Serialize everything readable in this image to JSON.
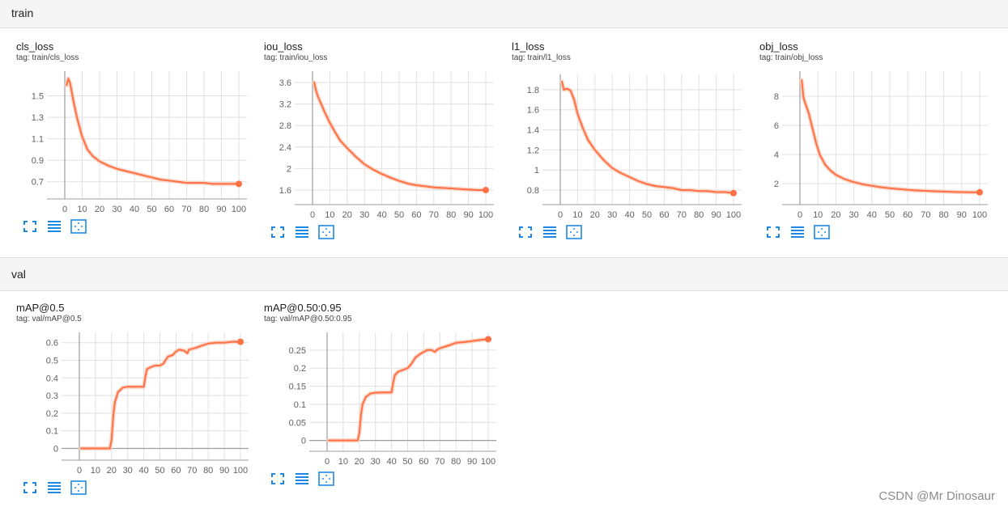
{
  "sections": {
    "train": {
      "label": "train"
    },
    "val": {
      "label": "val"
    }
  },
  "watermark": "CSDN @Mr Dinosaur",
  "colors": {
    "line": "#ff7043",
    "smooth_bg": "#f8d3c6",
    "axis": "#9e9e9e",
    "grid": "#e0e0e0",
    "icon": "#1e88e5"
  },
  "toolbar_icons": [
    "fullscreen-icon",
    "toggle-log-scale-icon",
    "fit-domain-icon"
  ],
  "cards": [
    {
      "id": "cls",
      "title": "cls_loss",
      "tag": "tag: train/cls_loss"
    },
    {
      "id": "iou",
      "title": "iou_loss",
      "tag": "tag: train/iou_loss"
    },
    {
      "id": "l1",
      "title": "l1_loss",
      "tag": "tag: train/l1_loss"
    },
    {
      "id": "obj",
      "title": "obj_loss",
      "tag": "tag: train/obj_loss"
    },
    {
      "id": "map50",
      "title": "mAP@0.5",
      "tag": "tag: val/mAP@0.5"
    },
    {
      "id": "map5095",
      "title": "mAP@0.50:0.95",
      "tag": "tag: val/mAP@0.50:0.95"
    }
  ],
  "chart_data": [
    {
      "type": "line",
      "title": "cls_loss",
      "xlim": [
        0,
        100
      ],
      "ylim": [
        0.6,
        1.7
      ],
      "xticks": [
        0,
        10,
        20,
        30,
        40,
        50,
        60,
        70,
        80,
        90,
        100
      ],
      "xtick_labels": [
        "0",
        "10",
        "20",
        "30",
        "40",
        "50",
        "60",
        "70",
        "80",
        "90",
        "100"
      ],
      "yticks": [
        0.7,
        0.9,
        1.1,
        1.3,
        1.5
      ],
      "ytick_labels": [
        "0.7",
        "0.9",
        "1.1",
        "1.3",
        "1.5"
      ],
      "x": [
        1,
        2,
        3,
        5,
        7,
        10,
        13,
        16,
        20,
        25,
        30,
        35,
        40,
        45,
        50,
        55,
        60,
        65,
        70,
        75,
        80,
        85,
        90,
        95,
        100
      ],
      "y": [
        1.6,
        1.66,
        1.62,
        1.45,
        1.3,
        1.12,
        1.0,
        0.94,
        0.89,
        0.85,
        0.82,
        0.8,
        0.78,
        0.76,
        0.74,
        0.72,
        0.71,
        0.7,
        0.69,
        0.69,
        0.69,
        0.68,
        0.68,
        0.68,
        0.68
      ]
    },
    {
      "type": "line",
      "title": "iou_loss",
      "xlim": [
        0,
        100
      ],
      "ylim": [
        1.45,
        3.75
      ],
      "xticks": [
        0,
        10,
        20,
        30,
        40,
        50,
        60,
        70,
        80,
        90,
        100
      ],
      "xtick_labels": [
        "0",
        "10",
        "20",
        "30",
        "40",
        "50",
        "60",
        "70",
        "80",
        "90",
        "100"
      ],
      "yticks": [
        1.6,
        2,
        2.4,
        2.8,
        3.2,
        3.6
      ],
      "ytick_labels": [
        "1.6",
        "2",
        "2.4",
        "2.8",
        "3.2",
        "3.6"
      ],
      "x": [
        1,
        2,
        3,
        5,
        7,
        10,
        13,
        16,
        20,
        25,
        30,
        35,
        40,
        45,
        50,
        55,
        60,
        65,
        70,
        75,
        80,
        85,
        90,
        95,
        100
      ],
      "y": [
        3.6,
        3.45,
        3.35,
        3.2,
        3.05,
        2.85,
        2.68,
        2.52,
        2.38,
        2.22,
        2.08,
        1.98,
        1.9,
        1.83,
        1.77,
        1.72,
        1.69,
        1.67,
        1.65,
        1.64,
        1.63,
        1.62,
        1.61,
        1.6,
        1.6
      ]
    },
    {
      "type": "line",
      "title": "l1_loss",
      "xlim": [
        0,
        100
      ],
      "ylim": [
        0.72,
        1.92
      ],
      "xticks": [
        0,
        10,
        20,
        30,
        40,
        50,
        60,
        70,
        80,
        90,
        100
      ],
      "xtick_labels": [
        "0",
        "10",
        "20",
        "30",
        "40",
        "50",
        "60",
        "70",
        "80",
        "90",
        "100"
      ],
      "yticks": [
        0.8,
        1,
        1.2,
        1.4,
        1.6,
        1.8
      ],
      "ytick_labels": [
        "0.8",
        "1",
        "1.2",
        "1.4",
        "1.6",
        "1.8"
      ],
      "x": [
        1,
        2,
        4,
        6,
        8,
        10,
        13,
        16,
        20,
        25,
        30,
        35,
        40,
        45,
        50,
        55,
        60,
        65,
        70,
        75,
        80,
        85,
        90,
        95,
        100
      ],
      "y": [
        1.88,
        1.8,
        1.81,
        1.79,
        1.7,
        1.56,
        1.42,
        1.3,
        1.2,
        1.1,
        1.02,
        0.97,
        0.93,
        0.89,
        0.86,
        0.84,
        0.83,
        0.82,
        0.8,
        0.8,
        0.79,
        0.79,
        0.78,
        0.78,
        0.77
      ]
    },
    {
      "type": "line",
      "title": "obj_loss",
      "xlim": [
        0,
        100
      ],
      "ylim": [
        1,
        9.5
      ],
      "xticks": [
        0,
        10,
        20,
        30,
        40,
        50,
        60,
        70,
        80,
        90,
        100
      ],
      "xtick_labels": [
        "0",
        "10",
        "20",
        "30",
        "40",
        "50",
        "60",
        "70",
        "80",
        "90",
        "100"
      ],
      "yticks": [
        2,
        4,
        6,
        8
      ],
      "ytick_labels": [
        "2",
        "4",
        "6",
        "8"
      ],
      "x": [
        1,
        2,
        3,
        5,
        7,
        9,
        11,
        14,
        17,
        20,
        25,
        30,
        35,
        40,
        45,
        50,
        55,
        60,
        65,
        70,
        75,
        80,
        85,
        90,
        95,
        100
      ],
      "y": [
        9.1,
        7.9,
        7.5,
        6.8,
        5.8,
        4.8,
        4.0,
        3.3,
        2.9,
        2.6,
        2.3,
        2.1,
        1.95,
        1.85,
        1.75,
        1.68,
        1.62,
        1.57,
        1.53,
        1.5,
        1.47,
        1.45,
        1.43,
        1.41,
        1.4,
        1.4
      ]
    },
    {
      "type": "line",
      "title": "mAP@0.5",
      "xlim": [
        0,
        100
      ],
      "ylim": [
        -0.03,
        0.64
      ],
      "xticks": [
        0,
        10,
        20,
        30,
        40,
        50,
        60,
        70,
        80,
        90,
        100
      ],
      "xtick_labels": [
        "0",
        "10",
        "20",
        "30",
        "40",
        "50",
        "60",
        "70",
        "80",
        "90",
        "100"
      ],
      "yticks": [
        0,
        0.1,
        0.2,
        0.3,
        0.4,
        0.5,
        0.6
      ],
      "ytick_labels": [
        "0",
        "0.1",
        "0.2",
        "0.3",
        "0.4",
        "0.5",
        "0.6"
      ],
      "x": [
        1,
        10,
        19,
        20,
        21,
        22,
        24,
        27,
        30,
        35,
        39,
        40,
        41,
        42,
        44,
        47,
        50,
        52,
        55,
        58,
        60,
        62,
        65,
        67,
        68,
        70,
        72,
        75,
        80,
        85,
        90,
        95,
        100
      ],
      "y": [
        0,
        0,
        0,
        0.05,
        0.18,
        0.26,
        0.32,
        0.345,
        0.35,
        0.35,
        0.35,
        0.35,
        0.41,
        0.45,
        0.46,
        0.47,
        0.47,
        0.48,
        0.52,
        0.53,
        0.55,
        0.56,
        0.555,
        0.54,
        0.56,
        0.565,
        0.57,
        0.58,
        0.595,
        0.6,
        0.6,
        0.605,
        0.605
      ]
    },
    {
      "type": "line",
      "title": "mAP@0.50:0.95",
      "xlim": [
        0,
        100
      ],
      "ylim": [
        -0.012,
        0.29
      ],
      "xticks": [
        0,
        10,
        20,
        30,
        40,
        50,
        60,
        70,
        80,
        90,
        100
      ],
      "xtick_labels": [
        "0",
        "10",
        "20",
        "30",
        "40",
        "50",
        "60",
        "70",
        "80",
        "90",
        "100"
      ],
      "yticks": [
        0,
        0.05,
        0.1,
        0.15,
        0.2,
        0.25
      ],
      "ytick_labels": [
        "0",
        "0.05",
        "0.1",
        "0.15",
        "0.2",
        "0.25"
      ],
      "x": [
        1,
        10,
        19,
        20,
        21,
        22,
        24,
        27,
        30,
        35,
        39,
        40,
        41,
        42,
        44,
        47,
        50,
        52,
        55,
        58,
        60,
        62,
        65,
        67,
        68,
        70,
        75,
        80,
        85,
        90,
        95,
        100
      ],
      "y": [
        0,
        0,
        0,
        0.02,
        0.07,
        0.1,
        0.12,
        0.13,
        0.132,
        0.133,
        0.133,
        0.133,
        0.16,
        0.18,
        0.19,
        0.195,
        0.2,
        0.21,
        0.23,
        0.24,
        0.245,
        0.25,
        0.25,
        0.245,
        0.25,
        0.255,
        0.262,
        0.27,
        0.272,
        0.275,
        0.278,
        0.28
      ]
    }
  ]
}
